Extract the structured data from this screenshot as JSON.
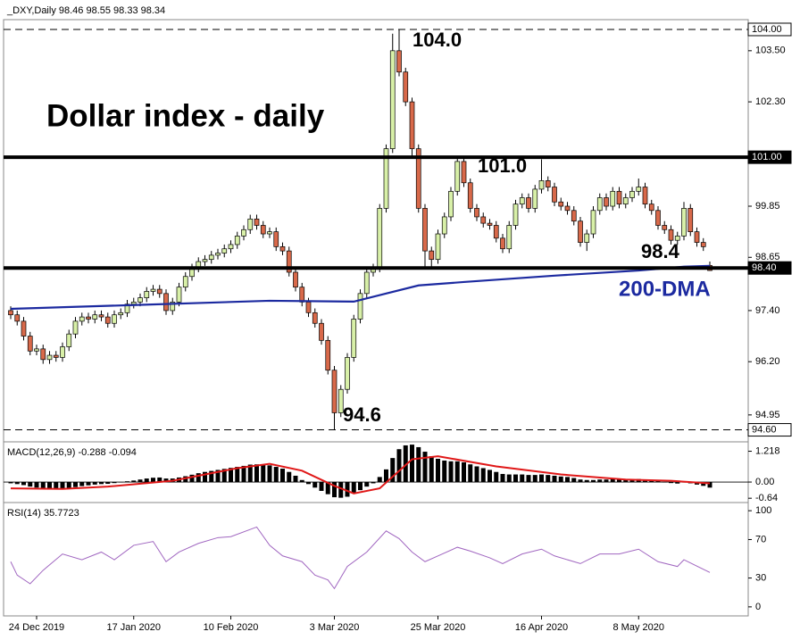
{
  "chart_data": {
    "type": "candlestick",
    "title": "_DXY,Daily  98.46 98.55 98.33 98.34",
    "annotations": [
      "Dollar index - daily",
      "104.0",
      "101.0",
      "98.4",
      "94.6"
    ],
    "categories": [
      null,
      null,
      null,
      null,
      "24 Dec 2019",
      null,
      null,
      null,
      null,
      null,
      null,
      null,
      null,
      null,
      null,
      null,
      null,
      null,
      null,
      "17 Jan 2020",
      null,
      null,
      null,
      null,
      null,
      null,
      null,
      null,
      null,
      null,
      null,
      null,
      null,
      null,
      "10 Feb 2020",
      null,
      null,
      null,
      null,
      null,
      null,
      null,
      null,
      null,
      null,
      null,
      null,
      null,
      null,
      null,
      "3 Mar 2020",
      null,
      null,
      null,
      null,
      null,
      null,
      null,
      null,
      null,
      null,
      null,
      null,
      null,
      null,
      null,
      "25 Mar 2020",
      null,
      null,
      null,
      null,
      null,
      null,
      null,
      null,
      null,
      null,
      null,
      null,
      null,
      null,
      null,
      "16 Apr 2020",
      null,
      null,
      null,
      null,
      null,
      null,
      null,
      null,
      null,
      null,
      null,
      null,
      null,
      null,
      "8 May 2020",
      null,
      null,
      null,
      null,
      null,
      null,
      null,
      null,
      null,
      null,
      null
    ],
    "open": [
      97.4,
      97.3,
      97.15,
      96.8,
      96.45,
      96.5,
      96.25,
      96.35,
      96.3,
      96.55,
      96.85,
      97.15,
      97.25,
      97.2,
      97.3,
      97.25,
      97.1,
      97.3,
      97.35,
      97.55,
      97.6,
      97.7,
      97.85,
      97.9,
      97.8,
      97.4,
      97.6,
      97.95,
      98.2,
      98.4,
      98.55,
      98.6,
      98.7,
      98.75,
      98.85,
      98.95,
      99.15,
      99.3,
      99.55,
      99.4,
      99.2,
      99.25,
      98.9,
      98.8,
      98.3,
      97.95,
      97.6,
      97.35,
      97.1,
      96.7,
      96.0,
      95.0,
      95.55,
      96.3,
      97.2,
      97.8,
      98.3,
      98.4,
      99.8,
      101.2,
      103.5,
      103.0,
      102.3,
      101.2,
      99.8,
      98.8,
      98.6,
      99.2,
      99.6,
      100.2,
      100.9,
      100.4,
      99.8,
      99.6,
      99.45,
      99.4,
      99.1,
      98.85,
      99.4,
      99.9,
      100.05,
      99.8,
      100.25,
      100.45,
      100.3,
      99.95,
      99.85,
      99.75,
      99.5,
      99.0,
      99.2,
      99.75,
      100.05,
      99.85,
      100.2,
      99.9,
      100.05,
      100.2,
      100.3,
      99.9,
      99.75,
      99.4,
      99.3,
      99.05,
      99.15,
      99.8,
      99.25,
      99.0,
      98.46
    ],
    "high": [
      97.5,
      97.4,
      97.25,
      96.9,
      96.6,
      96.6,
      96.45,
      96.45,
      96.65,
      96.95,
      97.25,
      97.35,
      97.35,
      97.4,
      97.4,
      97.35,
      97.4,
      97.45,
      97.65,
      97.7,
      97.8,
      97.95,
      98.0,
      98.0,
      97.9,
      97.7,
      98.05,
      98.3,
      98.5,
      98.65,
      98.7,
      98.8,
      98.85,
      98.95,
      99.05,
      99.25,
      99.4,
      99.65,
      99.65,
      99.5,
      99.35,
      99.35,
      99.0,
      98.9,
      98.4,
      98.05,
      97.7,
      97.45,
      97.2,
      96.8,
      96.1,
      95.65,
      96.4,
      97.3,
      97.9,
      98.4,
      98.5,
      99.9,
      101.3,
      103.9,
      104.0,
      103.1,
      102.4,
      101.3,
      99.9,
      98.9,
      99.3,
      99.7,
      100.3,
      101.0,
      101.0,
      100.5,
      99.9,
      99.7,
      99.55,
      99.5,
      99.2,
      99.5,
      100.0,
      100.15,
      100.15,
      100.35,
      100.95,
      100.55,
      100.4,
      100.05,
      99.95,
      99.85,
      99.6,
      99.3,
      99.85,
      100.15,
      100.15,
      100.3,
      100.3,
      100.15,
      100.3,
      100.5,
      100.4,
      100.0,
      99.85,
      99.5,
      99.4,
      99.25,
      99.95,
      99.9,
      99.35,
      99.1,
      98.55
    ],
    "low": [
      97.2,
      97.05,
      96.7,
      96.35,
      96.35,
      96.15,
      96.15,
      96.2,
      96.2,
      96.45,
      96.75,
      97.05,
      97.1,
      97.1,
      97.15,
      97.0,
      97.0,
      97.2,
      97.25,
      97.45,
      97.5,
      97.6,
      97.75,
      97.7,
      97.3,
      97.3,
      97.5,
      97.85,
      98.1,
      98.3,
      98.45,
      98.5,
      98.6,
      98.65,
      98.75,
      98.85,
      99.05,
      99.2,
      99.3,
      99.1,
      99.1,
      98.8,
      98.7,
      98.2,
      97.85,
      97.5,
      97.25,
      97.0,
      96.6,
      95.9,
      94.6,
      94.9,
      95.45,
      96.2,
      97.1,
      97.7,
      98.2,
      98.3,
      99.7,
      101.1,
      102.9,
      102.2,
      101.0,
      99.7,
      98.4,
      98.4,
      98.5,
      99.1,
      99.5,
      100.1,
      100.3,
      99.7,
      99.5,
      99.35,
      99.3,
      99.0,
      98.75,
      98.75,
      99.3,
      99.8,
      99.7,
      99.7,
      100.15,
      100.2,
      99.85,
      99.75,
      99.65,
      99.4,
      98.9,
      98.8,
      99.1,
      99.65,
      99.75,
      99.75,
      99.8,
      99.8,
      99.95,
      100.1,
      99.8,
      99.65,
      99.3,
      99.2,
      98.95,
      98.95,
      99.05,
      99.15,
      98.9,
      98.8,
      98.33
    ],
    "close": [
      97.3,
      97.15,
      96.8,
      96.45,
      96.5,
      96.25,
      96.35,
      96.3,
      96.55,
      96.85,
      97.15,
      97.25,
      97.2,
      97.3,
      97.25,
      97.1,
      97.3,
      97.35,
      97.55,
      97.6,
      97.7,
      97.85,
      97.9,
      97.8,
      97.4,
      97.6,
      97.95,
      98.2,
      98.4,
      98.55,
      98.6,
      98.7,
      98.75,
      98.85,
      98.95,
      99.15,
      99.3,
      99.55,
      99.4,
      99.2,
      99.25,
      98.9,
      98.8,
      98.3,
      97.95,
      97.6,
      97.35,
      97.1,
      96.7,
      96.0,
      95.0,
      95.55,
      96.3,
      97.2,
      97.8,
      98.3,
      98.4,
      99.8,
      101.2,
      103.5,
      103.0,
      102.3,
      101.2,
      99.8,
      98.8,
      98.6,
      99.2,
      99.6,
      100.2,
      100.9,
      100.4,
      99.8,
      99.6,
      99.45,
      99.4,
      99.1,
      98.85,
      99.4,
      99.9,
      100.05,
      99.8,
      100.25,
      100.45,
      100.3,
      99.95,
      99.85,
      99.75,
      99.5,
      99.0,
      99.2,
      99.75,
      100.05,
      99.85,
      100.2,
      99.9,
      100.05,
      100.2,
      100.3,
      99.9,
      99.75,
      99.4,
      99.3,
      99.05,
      99.15,
      99.8,
      99.25,
      99.0,
      98.9,
      98.34
    ],
    "up_color": "#d8f0a8",
    "down_color": "#d8694a",
    "ylim": [
      94.36,
      104.23
    ],
    "yticks": [
      {
        "value": 103.5,
        "label": "103.50"
      },
      {
        "value": 102.3,
        "label": "102.30"
      },
      99.85,
      98.65,
      {
        "value": 97.4,
        "label": "97.40"
      },
      {
        "value": 96.2,
        "label": "96.20"
      },
      94.95
    ],
    "levels": [
      {
        "value": 104,
        "label": "104.00",
        "style": "dashed"
      },
      {
        "value": 101,
        "label": "101.00",
        "style": "solid"
      },
      {
        "value": 98.4,
        "label": "98.40",
        "style": "solid"
      },
      {
        "value": 94.6,
        "label": "94.60",
        "style": "dashed"
      }
    ],
    "moving_average": {
      "name": "200-DMA",
      "color": "#1c2aa0",
      "x": [
        0,
        19,
        40,
        53,
        58,
        63,
        70,
        84,
        97,
        104,
        108
      ],
      "values": [
        97.44,
        97.53,
        97.63,
        97.61,
        97.8,
        97.99,
        98.07,
        98.22,
        98.34,
        98.43,
        98.45
      ]
    },
    "macd": {
      "label": "MACD(12,26,9) -0.288 -0.094",
      "color": "#000000",
      "histogram": [
        -0.05,
        -0.08,
        -0.12,
        -0.18,
        -0.22,
        -0.26,
        -0.27,
        -0.28,
        -0.27,
        -0.24,
        -0.2,
        -0.16,
        -0.13,
        -0.1,
        -0.08,
        -0.07,
        -0.04,
        -0.01,
        0.03,
        0.06,
        0.1,
        0.14,
        0.17,
        0.18,
        0.14,
        0.14,
        0.18,
        0.23,
        0.29,
        0.35,
        0.4,
        0.44,
        0.48,
        0.52,
        0.56,
        0.6,
        0.64,
        0.69,
        0.7,
        0.68,
        0.66,
        0.6,
        0.53,
        0.4,
        0.25,
        0.08,
        -0.08,
        -0.22,
        -0.35,
        -0.48,
        -0.6,
        -0.62,
        -0.58,
        -0.45,
        -0.32,
        -0.18,
        -0.05,
        0.2,
        0.5,
        0.95,
        1.3,
        1.45,
        1.48,
        1.38,
        1.2,
        1.02,
        0.92,
        0.85,
        0.82,
        0.82,
        0.78,
        0.7,
        0.62,
        0.55,
        0.48,
        0.4,
        0.32,
        0.3,
        0.3,
        0.3,
        0.28,
        0.28,
        0.3,
        0.28,
        0.25,
        0.22,
        0.2,
        0.16,
        0.1,
        0.08,
        0.08,
        0.1,
        0.1,
        0.12,
        0.1,
        0.1,
        0.11,
        0.12,
        0.1,
        0.08,
        0.04,
        0.0,
        -0.04,
        -0.06,
        -0.02,
        -0.05,
        -0.1,
        -0.15,
        -0.22
      ],
      "signal": {
        "color": "#e01818",
        "x": [
          0,
          8,
          15,
          25,
          35,
          40,
          45,
          50,
          53,
          57,
          62,
          66,
          75,
          85,
          95,
          102,
          108
        ],
        "values": [
          -0.25,
          -0.27,
          -0.18,
          0.05,
          0.55,
          0.72,
          0.45,
          -0.15,
          -0.45,
          -0.25,
          0.9,
          1.02,
          0.62,
          0.3,
          0.1,
          0.05,
          -0.05
        ]
      },
      "ylim": [
        -0.81,
        1.59
      ],
      "yticks": [
        1.218,
        {
          "value": 0,
          "label": "0.00"
        },
        -0.64
      ]
    },
    "rsi": {
      "label": "RSI(14) 35.7723",
      "color": "#a066c0",
      "x": [
        0,
        1,
        3,
        5,
        8,
        11,
        14,
        16,
        19,
        22,
        24,
        26,
        29,
        32,
        34,
        38,
        40,
        42,
        45,
        47,
        49,
        50,
        52,
        55,
        58,
        60,
        62,
        64,
        66,
        69,
        71,
        74,
        76,
        79,
        82,
        84,
        88,
        91,
        94,
        97,
        100,
        103,
        104,
        108
      ],
      "values": [
        47,
        33,
        24,
        38,
        55,
        49,
        57,
        49,
        64,
        68,
        47,
        57,
        66,
        72,
        73,
        83,
        64,
        53,
        47,
        33,
        28,
        19,
        42,
        57,
        79,
        71,
        57,
        47,
        53,
        62,
        58,
        51,
        45,
        55,
        60,
        53,
        45,
        55,
        55,
        60,
        47,
        42,
        49,
        35.7723
      ],
      "ylim": [
        -9.4,
        108.5
      ],
      "yticks": [
        100,
        70,
        30,
        0
      ]
    }
  }
}
